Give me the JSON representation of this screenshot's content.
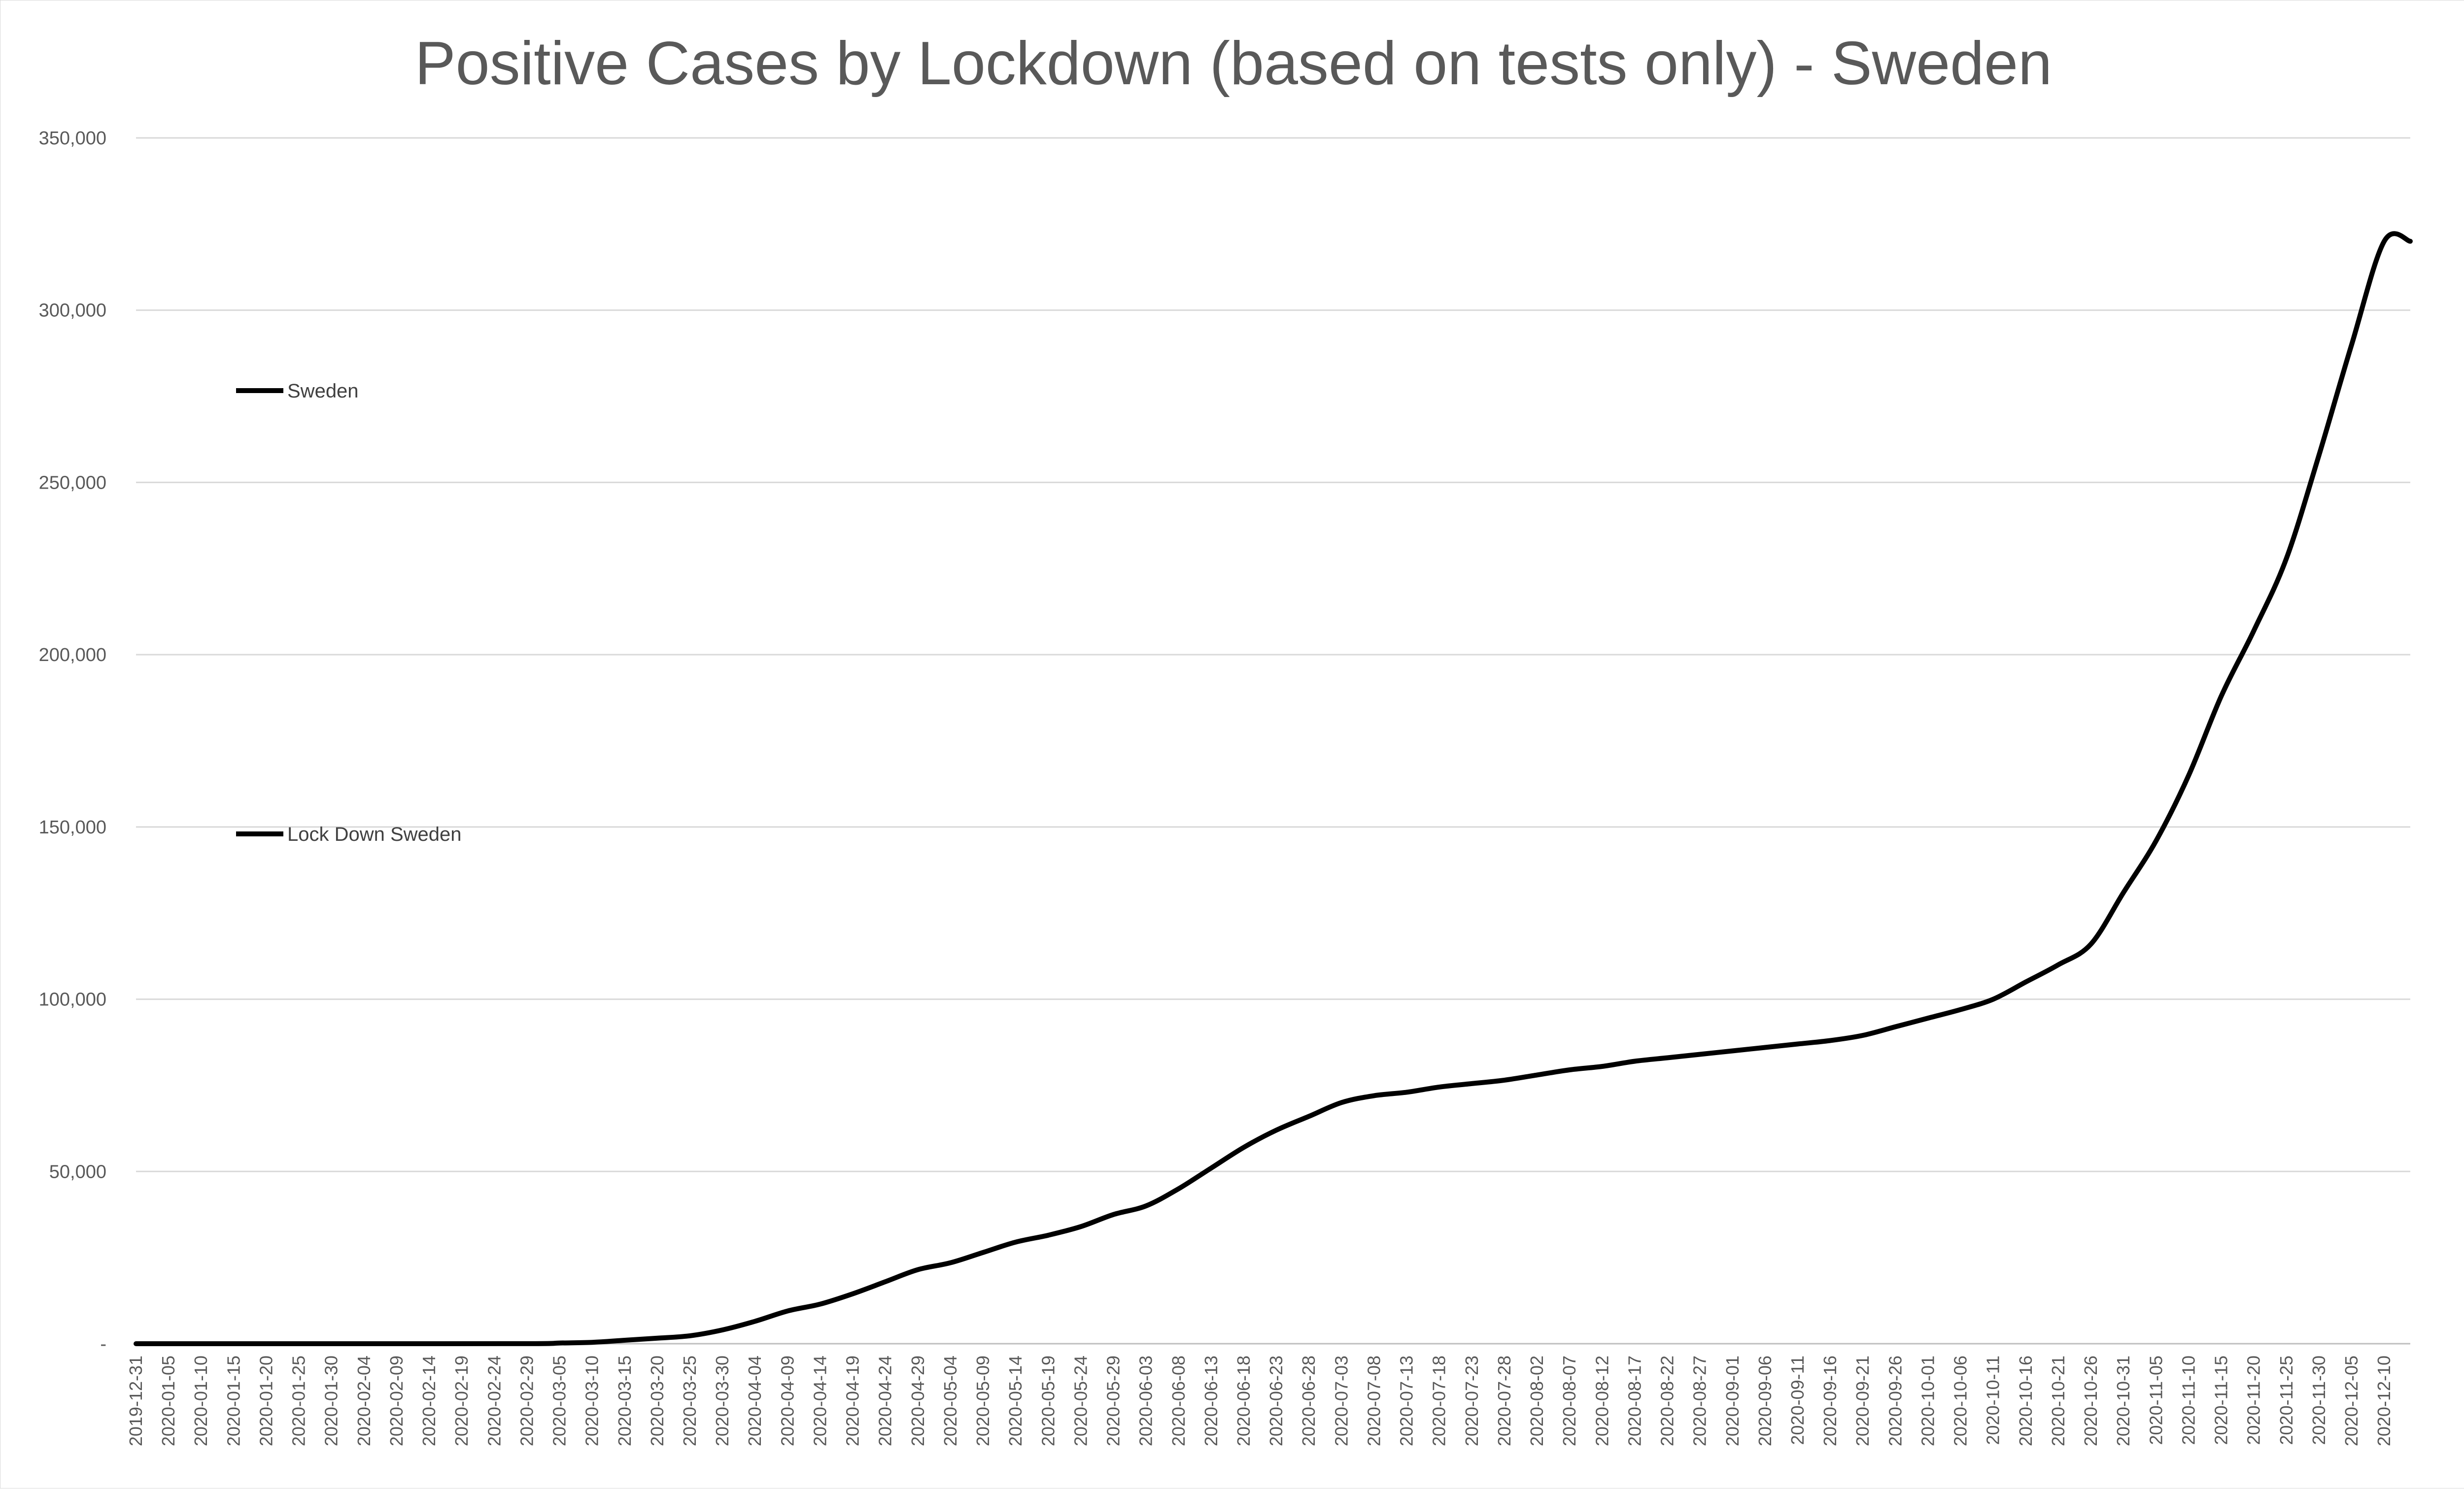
{
  "chart_data": {
    "type": "line",
    "title": "Positive Cases by Lockdown (based on tests only) - Sweden",
    "xlabel": "",
    "ylabel": "",
    "ylim": [
      0,
      350000
    ],
    "y_ticks": [
      {
        "value": 0,
        "label": "-"
      },
      {
        "value": 50000,
        "label": "50,000"
      },
      {
        "value": 100000,
        "label": "100,000"
      },
      {
        "value": 150000,
        "label": "150,000"
      },
      {
        "value": 200000,
        "label": "200,000"
      },
      {
        "value": 250000,
        "label": "250,000"
      },
      {
        "value": 300000,
        "label": "300,000"
      },
      {
        "value": 350000,
        "label": "350,000"
      }
    ],
    "x_start": "2019-12-31",
    "x_end": "2020-12-14",
    "x_tick_labels": [
      "2019-12-31",
      "2020-01-05",
      "2020-01-10",
      "2020-01-15",
      "2020-01-20",
      "2020-01-25",
      "2020-01-30",
      "2020-02-04",
      "2020-02-09",
      "2020-02-14",
      "2020-02-19",
      "2020-02-24",
      "2020-02-29",
      "2020-03-05",
      "2020-03-10",
      "2020-03-15",
      "2020-03-20",
      "2020-03-25",
      "2020-03-30",
      "2020-04-04",
      "2020-04-09",
      "2020-04-14",
      "2020-04-19",
      "2020-04-24",
      "2020-04-29",
      "2020-05-04",
      "2020-05-09",
      "2020-05-14",
      "2020-05-19",
      "2020-05-24",
      "2020-05-29",
      "2020-06-03",
      "2020-06-08",
      "2020-06-13",
      "2020-06-18",
      "2020-06-23",
      "2020-06-28",
      "2020-07-03",
      "2020-07-08",
      "2020-07-13",
      "2020-07-18",
      "2020-07-23",
      "2020-07-28",
      "2020-08-02",
      "2020-08-07",
      "2020-08-12",
      "2020-08-17",
      "2020-08-22",
      "2020-08-27",
      "2020-09-01",
      "2020-09-06",
      "2020-09-11",
      "2020-09-16",
      "2020-09-21",
      "2020-09-26",
      "2020-10-01",
      "2020-10-06",
      "2020-10-11",
      "2020-10-16",
      "2020-10-21",
      "2020-10-26",
      "2020-10-31",
      "2020-11-05",
      "2020-11-10",
      "2020-11-15",
      "2020-11-20",
      "2020-11-25",
      "2020-11-30",
      "2020-12-05",
      "2020-12-10"
    ],
    "legend": {
      "placement": "left"
    },
    "grid": true,
    "series": [
      {
        "name": "Sweden",
        "color": "#000000",
        "points": [
          [
            "2019-12-31",
            0
          ],
          [
            "2020-01-31",
            0
          ],
          [
            "2020-02-29",
            10
          ],
          [
            "2020-03-05",
            200
          ],
          [
            "2020-03-10",
            400
          ],
          [
            "2020-03-15",
            1000
          ],
          [
            "2020-03-20",
            1600
          ],
          [
            "2020-03-25",
            2300
          ],
          [
            "2020-03-30",
            4000
          ],
          [
            "2020-04-04",
            6500
          ],
          [
            "2020-04-09",
            9500
          ],
          [
            "2020-04-14",
            11500
          ],
          [
            "2020-04-19",
            14500
          ],
          [
            "2020-04-24",
            18000
          ],
          [
            "2020-04-29",
            21500
          ],
          [
            "2020-05-04",
            23500
          ],
          [
            "2020-05-09",
            26500
          ],
          [
            "2020-05-14",
            29500
          ],
          [
            "2020-05-19",
            31500
          ],
          [
            "2020-05-24",
            34000
          ],
          [
            "2020-05-29",
            37500
          ],
          [
            "2020-06-03",
            40000
          ],
          [
            "2020-06-08",
            45000
          ],
          [
            "2020-06-13",
            51000
          ],
          [
            "2020-06-18",
            57000
          ],
          [
            "2020-06-23",
            62000
          ],
          [
            "2020-06-28",
            66000
          ],
          [
            "2020-07-03",
            70000
          ],
          [
            "2020-07-08",
            72000
          ],
          [
            "2020-07-13",
            73000
          ],
          [
            "2020-07-18",
            74500
          ],
          [
            "2020-07-23",
            75500
          ],
          [
            "2020-07-28",
            76500
          ],
          [
            "2020-08-02",
            78000
          ],
          [
            "2020-08-07",
            79500
          ],
          [
            "2020-08-12",
            80500
          ],
          [
            "2020-08-17",
            82000
          ],
          [
            "2020-08-22",
            83000
          ],
          [
            "2020-08-27",
            84000
          ],
          [
            "2020-09-01",
            85000
          ],
          [
            "2020-09-06",
            86000
          ],
          [
            "2020-09-11",
            87000
          ],
          [
            "2020-09-16",
            88000
          ],
          [
            "2020-09-21",
            89500
          ],
          [
            "2020-09-26",
            92000
          ],
          [
            "2020-10-01",
            94500
          ],
          [
            "2020-10-06",
            97000
          ],
          [
            "2020-10-11",
            100000
          ],
          [
            "2020-10-16",
            105000
          ],
          [
            "2020-10-21",
            110000
          ],
          [
            "2020-10-26",
            116000
          ],
          [
            "2020-10-31",
            131000
          ],
          [
            "2020-11-05",
            146000
          ],
          [
            "2020-11-10",
            165000
          ],
          [
            "2020-11-15",
            188000
          ],
          [
            "2020-11-20",
            207000
          ],
          [
            "2020-11-25",
            228000
          ],
          [
            "2020-11-30",
            258000
          ],
          [
            "2020-12-05",
            290000
          ],
          [
            "2020-12-10",
            320000
          ],
          [
            "2020-12-14",
            320000
          ]
        ]
      },
      {
        "name": "Lock Down Sweden",
        "color": "#000000",
        "points": []
      }
    ]
  }
}
